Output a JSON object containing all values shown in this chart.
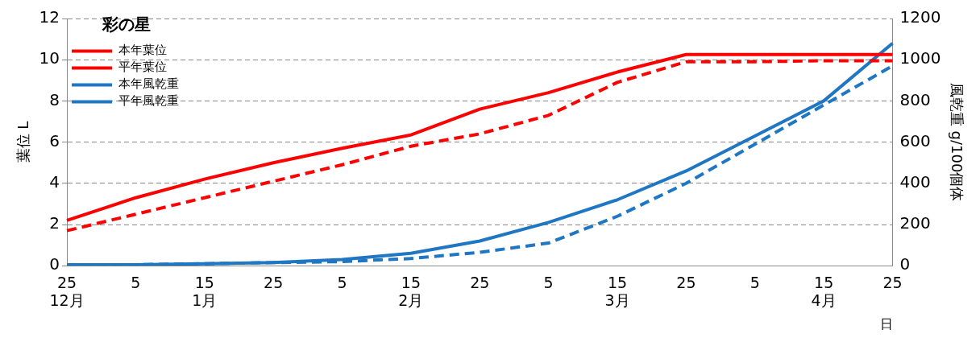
{
  "chart_data": {
    "type": "line",
    "categories": [
      "25\n12月",
      "5",
      "15\n1月",
      "25",
      "5",
      "15\n2月",
      "25",
      "5",
      "15\n3月",
      "25",
      "5",
      "15\n4月",
      "25"
    ],
    "xlabel": "日",
    "ylabel": "葉位 L",
    "y2label": "風乾重 g/100個体",
    "legend_title": "彩の星",
    "series": [
      {
        "name": "本年葉位",
        "color": "#ff0000",
        "line_style": "solid",
        "values": [
          2.2,
          3.3,
          4.2,
          5.0,
          5.7,
          6.35,
          7.6,
          8.4,
          9.4,
          10.25,
          10.25,
          10.25,
          10.25
        ]
      },
      {
        "name": "平年葉位",
        "color": "#ff0000",
        "line_style": "dashed",
        "values": [
          1.7,
          2.5,
          3.3,
          4.1,
          4.9,
          5.8,
          6.4,
          7.3,
          8.9,
          9.9,
          9.9,
          9.95,
          9.95
        ]
      },
      {
        "name": "本年風乾重",
        "color": "#1f77c4",
        "line_style": "solid",
        "axis": "y2",
        "values": [
          5,
          5,
          10,
          15,
          30,
          60,
          120,
          210,
          320,
          460,
          630,
          800,
          1080
        ]
      },
      {
        "name": "平年風乾重",
        "color": "#1f77c4",
        "line_style": "dashed",
        "axis": "y2",
        "values": [
          5,
          5,
          10,
          15,
          20,
          35,
          65,
          110,
          240,
          400,
          590,
          780,
          970
        ]
      }
    ],
    "ylim": [
      0,
      12
    ],
    "yticks": [
      0,
      2,
      4,
      6,
      8,
      10,
      12
    ],
    "y2lim": [
      0,
      1200
    ],
    "y2ticks": [
      0,
      200,
      400,
      600,
      800,
      {
        "value": 1000,
        "label": "1000"
      },
      {
        "value": 1200,
        "label": "1200"
      }
    ],
    "grid": "y",
    "legend": "top left",
    "marker": "none"
  }
}
